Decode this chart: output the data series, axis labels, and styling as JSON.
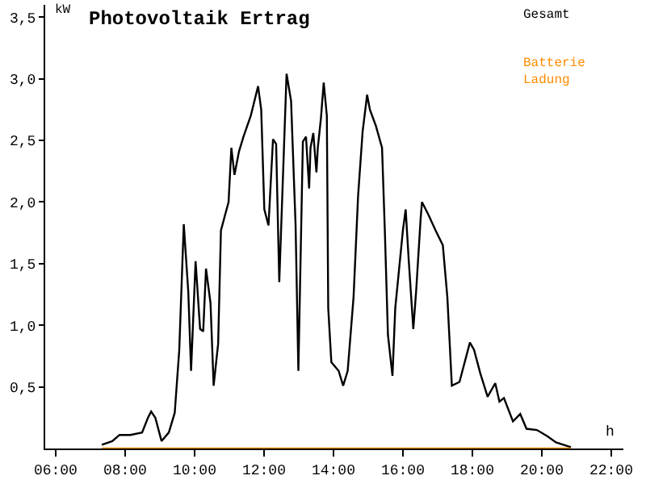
{
  "chart_data": {
    "type": "line",
    "title": "Photovoltaik Ertrag",
    "xlabel": "h",
    "ylabel": "kW",
    "xlim": [
      5.7,
      22.35
    ],
    "ylim": [
      0,
      3.6
    ],
    "xticks": [
      {
        "value": 6,
        "label": "06:00"
      },
      {
        "value": 8,
        "label": "08:00"
      },
      {
        "value": 10,
        "label": "10:00"
      },
      {
        "value": 12,
        "label": "12:00"
      },
      {
        "value": 14,
        "label": "14:00"
      },
      {
        "value": 16,
        "label": "16:00"
      },
      {
        "value": 18,
        "label": "18:00"
      },
      {
        "value": 20,
        "label": "20:00"
      },
      {
        "value": 22,
        "label": "22:00"
      }
    ],
    "yticks": [
      {
        "value": 0.5,
        "label": "0,5"
      },
      {
        "value": 1.0,
        "label": "1,0"
      },
      {
        "value": 1.5,
        "label": "1,5"
      },
      {
        "value": 2.0,
        "label": "2,0"
      },
      {
        "value": 2.5,
        "label": "2,5"
      },
      {
        "value": 3.0,
        "label": "3,0"
      },
      {
        "value": 3.5,
        "label": "3,5"
      }
    ],
    "grid": false,
    "legend": "top right",
    "marker": "none",
    "line_style": "solid",
    "series": [
      {
        "name": "Gesamt",
        "color": "#000000",
        "x": [
          7.33,
          7.63,
          7.84,
          8.15,
          8.49,
          8.66,
          8.75,
          8.87,
          9.05,
          9.26,
          9.43,
          9.56,
          9.69,
          9.82,
          9.9,
          10.03,
          10.16,
          10.25,
          10.33,
          10.46,
          10.55,
          10.68,
          10.76,
          10.98,
          11.06,
          11.15,
          11.28,
          11.41,
          11.62,
          11.83,
          11.92,
          12.01,
          12.13,
          12.26,
          12.35,
          12.44,
          12.65,
          12.78,
          12.91,
          12.99,
          13.12,
          13.21,
          13.3,
          13.34,
          13.42,
          13.51,
          13.55,
          13.64,
          13.72,
          13.81,
          13.85,
          13.94,
          14.15,
          14.28,
          14.41,
          14.58,
          14.71,
          14.84,
          14.97,
          15.05,
          15.22,
          15.4,
          15.48,
          15.57,
          15.7,
          15.78,
          16.0,
          16.08,
          16.17,
          16.3,
          16.38,
          16.51,
          16.55,
          16.73,
          16.94,
          17.15,
          17.28,
          17.41,
          17.63,
          17.93,
          18.05,
          18.23,
          18.44,
          18.66,
          18.78,
          18.91,
          19.17,
          19.38,
          19.56,
          19.86,
          20.16,
          20.41,
          20.84
        ],
        "values": [
          0.03,
          0.06,
          0.11,
          0.11,
          0.13,
          0.25,
          0.3,
          0.25,
          0.06,
          0.13,
          0.29,
          0.8,
          1.82,
          1.27,
          0.63,
          1.52,
          0.97,
          0.95,
          1.46,
          1.18,
          0.51,
          0.85,
          1.77,
          2.0,
          2.44,
          2.22,
          2.41,
          2.53,
          2.7,
          2.94,
          2.75,
          1.94,
          1.81,
          2.51,
          2.47,
          1.35,
          3.04,
          2.82,
          1.81,
          0.63,
          2.49,
          2.53,
          2.11,
          2.44,
          2.56,
          2.24,
          2.44,
          2.68,
          2.97,
          2.7,
          1.14,
          0.7,
          0.63,
          0.51,
          0.63,
          1.23,
          2.05,
          2.57,
          2.87,
          2.75,
          2.62,
          2.44,
          1.77,
          0.92,
          0.59,
          1.14,
          1.77,
          1.94,
          1.52,
          0.97,
          1.27,
          1.86,
          2.0,
          1.9,
          1.77,
          1.65,
          1.23,
          0.51,
          0.54,
          0.86,
          0.8,
          0.61,
          0.42,
          0.53,
          0.38,
          0.41,
          0.22,
          0.28,
          0.16,
          0.15,
          0.1,
          0.05,
          0.01
        ]
      },
      {
        "name": "Batterie Ladung",
        "color": "#ff8c00",
        "x": [
          7.33,
          20.84
        ],
        "values": [
          0,
          0
        ]
      }
    ]
  }
}
